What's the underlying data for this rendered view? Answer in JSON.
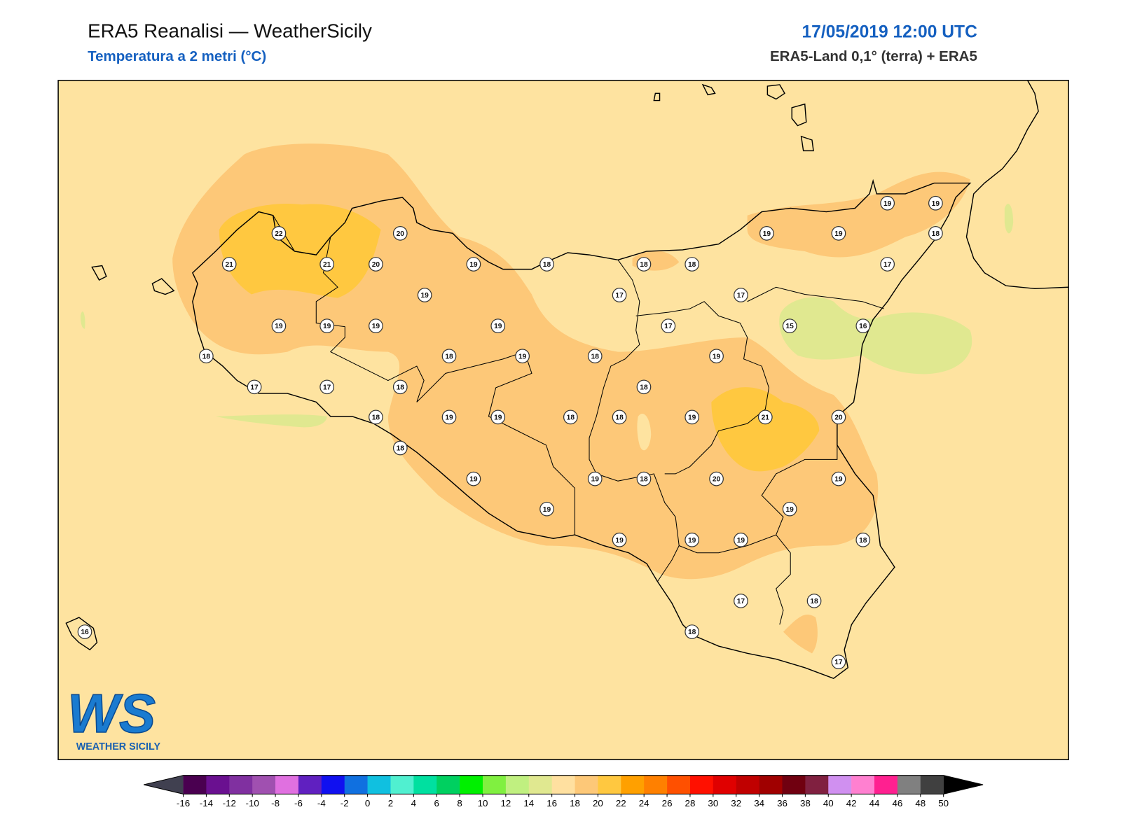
{
  "header": {
    "title": "ERA5 Reanalisi — WeatherSicily",
    "subtitle": "Temperatura a 2 metri (°C)",
    "datetime": "17/05/2019 12:00 UTC",
    "source": "ERA5-Land 0,1° (terra) + ERA5"
  },
  "map": {
    "background": "#fee3a0",
    "stations": [
      22,
      20,
      19,
      19,
      19,
      19,
      18,
      21,
      21,
      20,
      19,
      18,
      18,
      18,
      17,
      19,
      17,
      17,
      19,
      19,
      19,
      19,
      17,
      15,
      16,
      18,
      18,
      19,
      18,
      19,
      17,
      17,
      18,
      18,
      18,
      19,
      19,
      18,
      18,
      19,
      21,
      20,
      18,
      19,
      19,
      18,
      20,
      19,
      19,
      19,
      19,
      19,
      19,
      18,
      17,
      18,
      16,
      18,
      17
    ]
  },
  "logo": {
    "mark": "WS",
    "name": "WEATHER SICILY"
  },
  "colorbar": {
    "ticks": [
      -16,
      -14,
      -12,
      -10,
      -8,
      -6,
      -4,
      -2,
      0,
      2,
      4,
      6,
      8,
      10,
      12,
      14,
      16,
      18,
      20,
      22,
      24,
      26,
      28,
      30,
      32,
      34,
      36,
      38,
      40,
      42,
      44,
      46,
      48,
      50
    ],
    "colors": [
      "#4a0050",
      "#6a1090",
      "#8030a0",
      "#a050b0",
      "#e070e0",
      "#6020c0",
      "#1010f0",
      "#1070e0",
      "#10c0e0",
      "#50f0d0",
      "#00e0a0",
      "#00d060",
      "#00f000",
      "#80f040",
      "#c0f080",
      "#e0e890",
      "#ffe0a0",
      "#fdc878",
      "#ffc840",
      "#ffa000",
      "#ff8000",
      "#ff5000",
      "#ff1000",
      "#e00000",
      "#c00000",
      "#a00000",
      "#700010",
      "#802040",
      "#d090f0",
      "#ff80d0",
      "#ff2090",
      "#808080",
      "#404040"
    ],
    "under_color": "#404050",
    "over_color": "#000000"
  }
}
